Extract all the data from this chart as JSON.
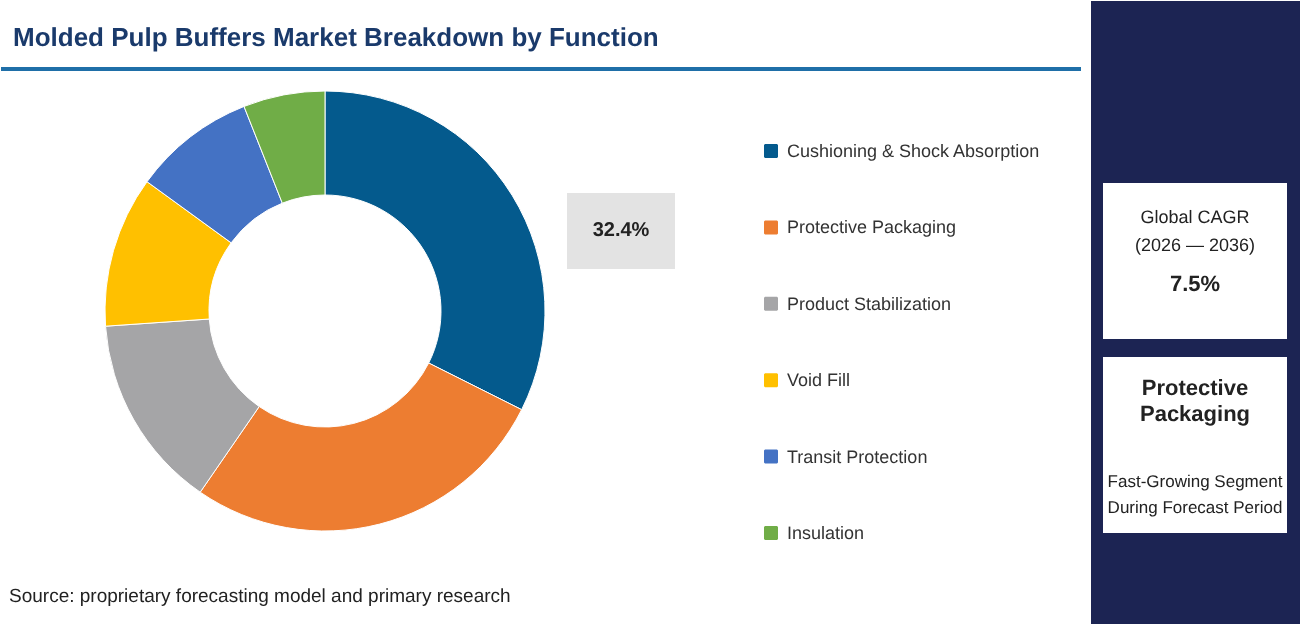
{
  "chart_data": [
    {
      "type": "donut",
      "title": "Molded Pulp Buffers Market Breakdown by Function",
      "categories": [
        "Cushioning & Shock Absorption",
        "Protective Packaging",
        "Product Stabilization",
        "Void Fill",
        "Transit Protection",
        "Insulation"
      ],
      "values": [
        32.4,
        27.2,
        14.3,
        11.1,
        9.0,
        6.0
      ],
      "colors": [
        "#045a8d",
        "#ed7d31",
        "#a5a5a7",
        "#ffc000",
        "#4472c4",
        "#70ad47"
      ],
      "value_labels": [
        "32.4%",
        null,
        null,
        null,
        null,
        null
      ],
      "legend": "right",
      "annotations": [
        "Source: proprietary forecasting model and primary research"
      ]
    },
    {
      "type": "other",
      "annotations": [
        "Global CAGR",
        "(2026 — 2036)",
        "7.5%",
        "Protective Packaging",
        "Fast-Growing Segment During Forecast Period"
      ]
    }
  ]
}
